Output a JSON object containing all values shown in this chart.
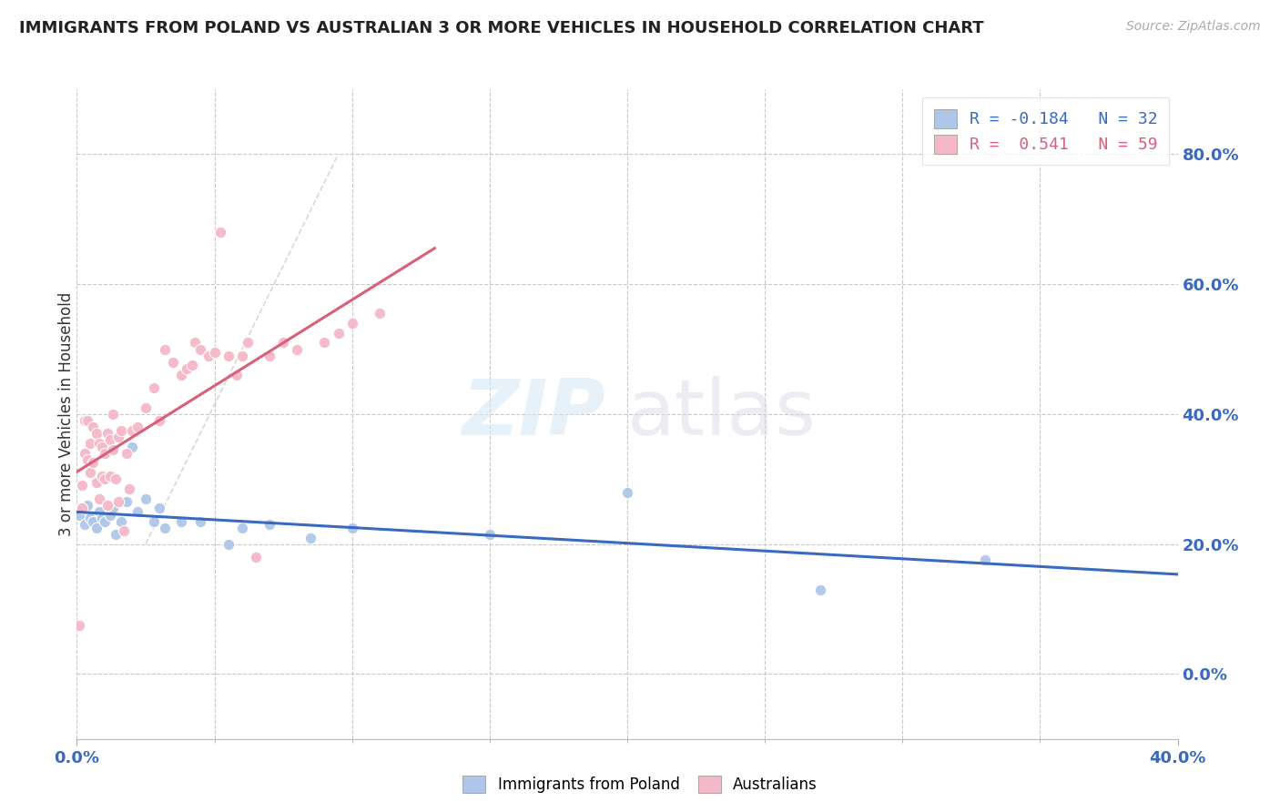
{
  "title": "IMMIGRANTS FROM POLAND VS AUSTRALIAN 3 OR MORE VEHICLES IN HOUSEHOLD CORRELATION CHART",
  "source": "Source: ZipAtlas.com",
  "ylabel": "3 or more Vehicles in Household",
  "legend_blue_label": "Immigrants from Poland",
  "legend_pink_label": "Australians",
  "blue_R": -0.184,
  "blue_N": 32,
  "pink_R": 0.541,
  "pink_N": 59,
  "blue_color": "#aec6e8",
  "pink_color": "#f5b8c8",
  "blue_line_color": "#3a6abf",
  "pink_line_color": "#d95f7a",
  "blue_scatter": [
    [
      0.001,
      0.245
    ],
    [
      0.002,
      0.255
    ],
    [
      0.003,
      0.23
    ],
    [
      0.004,
      0.26
    ],
    [
      0.005,
      0.24
    ],
    [
      0.006,
      0.235
    ],
    [
      0.007,
      0.225
    ],
    [
      0.008,
      0.25
    ],
    [
      0.009,
      0.24
    ],
    [
      0.01,
      0.235
    ],
    [
      0.012,
      0.245
    ],
    [
      0.013,
      0.255
    ],
    [
      0.014,
      0.215
    ],
    [
      0.016,
      0.235
    ],
    [
      0.018,
      0.265
    ],
    [
      0.02,
      0.35
    ],
    [
      0.022,
      0.25
    ],
    [
      0.025,
      0.27
    ],
    [
      0.028,
      0.235
    ],
    [
      0.03,
      0.255
    ],
    [
      0.032,
      0.225
    ],
    [
      0.038,
      0.235
    ],
    [
      0.045,
      0.235
    ],
    [
      0.055,
      0.2
    ],
    [
      0.06,
      0.225
    ],
    [
      0.07,
      0.23
    ],
    [
      0.085,
      0.21
    ],
    [
      0.1,
      0.225
    ],
    [
      0.15,
      0.215
    ],
    [
      0.2,
      0.28
    ],
    [
      0.27,
      0.13
    ],
    [
      0.33,
      0.175
    ]
  ],
  "pink_scatter": [
    [
      0.001,
      0.075
    ],
    [
      0.002,
      0.255
    ],
    [
      0.002,
      0.29
    ],
    [
      0.003,
      0.34
    ],
    [
      0.003,
      0.39
    ],
    [
      0.004,
      0.33
    ],
    [
      0.004,
      0.39
    ],
    [
      0.005,
      0.355
    ],
    [
      0.005,
      0.31
    ],
    [
      0.006,
      0.38
    ],
    [
      0.006,
      0.325
    ],
    [
      0.007,
      0.37
    ],
    [
      0.007,
      0.295
    ],
    [
      0.008,
      0.355
    ],
    [
      0.008,
      0.27
    ],
    [
      0.009,
      0.35
    ],
    [
      0.009,
      0.305
    ],
    [
      0.01,
      0.34
    ],
    [
      0.01,
      0.3
    ],
    [
      0.011,
      0.37
    ],
    [
      0.011,
      0.26
    ],
    [
      0.012,
      0.36
    ],
    [
      0.012,
      0.305
    ],
    [
      0.013,
      0.345
    ],
    [
      0.013,
      0.4
    ],
    [
      0.014,
      0.3
    ],
    [
      0.015,
      0.365
    ],
    [
      0.015,
      0.265
    ],
    [
      0.016,
      0.375
    ],
    [
      0.017,
      0.22
    ],
    [
      0.018,
      0.34
    ],
    [
      0.019,
      0.285
    ],
    [
      0.02,
      0.375
    ],
    [
      0.022,
      0.38
    ],
    [
      0.025,
      0.41
    ],
    [
      0.028,
      0.44
    ],
    [
      0.03,
      0.39
    ],
    [
      0.032,
      0.5
    ],
    [
      0.035,
      0.48
    ],
    [
      0.038,
      0.46
    ],
    [
      0.04,
      0.47
    ],
    [
      0.042,
      0.475
    ],
    [
      0.043,
      0.51
    ],
    [
      0.045,
      0.5
    ],
    [
      0.048,
      0.49
    ],
    [
      0.05,
      0.495
    ],
    [
      0.052,
      0.68
    ],
    [
      0.055,
      0.49
    ],
    [
      0.058,
      0.46
    ],
    [
      0.06,
      0.49
    ],
    [
      0.062,
      0.51
    ],
    [
      0.065,
      0.18
    ],
    [
      0.07,
      0.49
    ],
    [
      0.075,
      0.51
    ],
    [
      0.08,
      0.5
    ],
    [
      0.09,
      0.51
    ],
    [
      0.095,
      0.525
    ],
    [
      0.1,
      0.54
    ],
    [
      0.11,
      0.555
    ]
  ],
  "xlim": [
    0.0,
    0.4
  ],
  "ylim": [
    -0.1,
    0.9
  ],
  "xgrid_ticks": [
    0.0,
    0.05,
    0.1,
    0.15,
    0.2,
    0.25,
    0.3,
    0.35,
    0.4
  ],
  "ygrid_ticks": [
    0.0,
    0.2,
    0.4,
    0.6,
    0.8
  ],
  "pink_trend_xlim": [
    0.0,
    0.13
  ],
  "diag_line_color": "#c8c8c8"
}
